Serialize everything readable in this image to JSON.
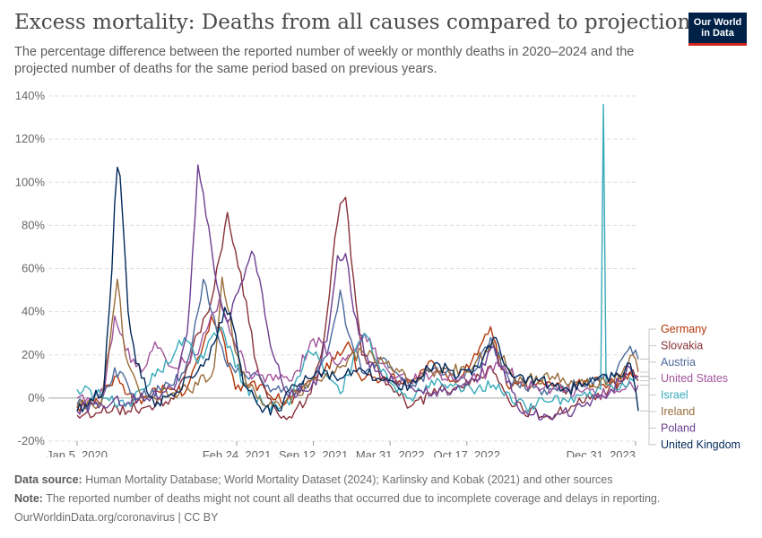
{
  "header": {
    "title": "Excess mortality: Deaths from all causes compared to projection",
    "subtitle": "The percentage difference between the reported number of weekly or monthly deaths in 2020–2024 and the projected number of deaths for the same period based on previous years.",
    "logo_line1": "Our World",
    "logo_line2": "in Data"
  },
  "footer": {
    "source_label": "Data source:",
    "source_text": " Human Mortality Database; World Mortality Dataset (2024); Karlinsky and Kobak (2021) and other sources",
    "note_label": "Note:",
    "note_text": " The reported number of deaths might not count all deaths that occurred due to incomplete coverage and delays in reporting.",
    "credit": "OurWorldinData.org/coronavirus | CC BY"
  },
  "chart_data": {
    "type": "line",
    "x_start": "2020-01-05",
    "x_end": "2024-01-07",
    "x_ticks": [
      {
        "date": "2020-01-05",
        "label": "Jan 5, 2020"
      },
      {
        "date": "2021-02-24",
        "label": "Feb 24, 2021"
      },
      {
        "date": "2021-09-12",
        "label": "Sep 12, 2021"
      },
      {
        "date": "2022-03-31",
        "label": "Mar 31, 2022"
      },
      {
        "date": "2022-10-17",
        "label": "Oct 17, 2022"
      },
      {
        "date": "2023-12-31",
        "label": "Dec 31, 2023"
      }
    ],
    "ylim": [
      -20,
      140
    ],
    "y_ticks": [
      -20,
      0,
      20,
      40,
      60,
      80,
      100,
      120,
      140
    ],
    "y_unit": "%",
    "grid": true,
    "legend_position": "right",
    "series": [
      {
        "name": "Germany",
        "color": "#b13507",
        "points": [
          [
            "2020-01-05",
            -4
          ],
          [
            "2020-03-01",
            -2
          ],
          [
            "2020-04-12",
            10
          ],
          [
            "2020-06-07",
            -2
          ],
          [
            "2020-08-16",
            6
          ],
          [
            "2020-10-11",
            2
          ],
          [
            "2020-11-22",
            20
          ],
          [
            "2020-12-20",
            38
          ],
          [
            "2021-01-17",
            30
          ],
          [
            "2021-02-21",
            4
          ],
          [
            "2021-03-28",
            6
          ],
          [
            "2021-05-09",
            4
          ],
          [
            "2021-07-04",
            -2
          ],
          [
            "2021-09-05",
            8
          ],
          [
            "2021-11-07",
            18
          ],
          [
            "2021-12-12",
            26
          ],
          [
            "2022-01-16",
            8
          ],
          [
            "2022-03-13",
            10
          ],
          [
            "2022-05-22",
            8
          ],
          [
            "2022-07-24",
            16
          ],
          [
            "2022-09-11",
            8
          ],
          [
            "2022-10-23",
            14
          ],
          [
            "2022-12-18",
            33
          ],
          [
            "2023-01-29",
            6
          ],
          [
            "2023-04-09",
            6
          ],
          [
            "2023-06-25",
            4
          ],
          [
            "2023-08-20",
            8
          ],
          [
            "2023-10-22",
            6
          ],
          [
            "2023-12-17",
            12
          ],
          [
            "2024-01-07",
            10
          ]
        ]
      },
      {
        "name": "Slovakia",
        "color": "#883039",
        "points": [
          [
            "2020-01-05",
            -8
          ],
          [
            "2020-04-05",
            -6
          ],
          [
            "2020-07-05",
            -4
          ],
          [
            "2020-09-06",
            0
          ],
          [
            "2020-10-11",
            10
          ],
          [
            "2020-11-15",
            30
          ],
          [
            "2020-12-13",
            40
          ],
          [
            "2021-01-10",
            65
          ],
          [
            "2021-01-31",
            86
          ],
          [
            "2021-02-14",
            72
          ],
          [
            "2021-03-07",
            58
          ],
          [
            "2021-03-28",
            35
          ],
          [
            "2021-04-18",
            15
          ],
          [
            "2021-05-16",
            0
          ],
          [
            "2021-07-04",
            -10
          ],
          [
            "2021-09-05",
            2
          ],
          [
            "2021-10-10",
            28
          ],
          [
            "2021-10-31",
            62
          ],
          [
            "2021-11-21",
            90
          ],
          [
            "2021-12-05",
            93
          ],
          [
            "2021-12-26",
            55
          ],
          [
            "2022-01-16",
            20
          ],
          [
            "2022-03-13",
            10
          ],
          [
            "2022-05-22",
            -4
          ],
          [
            "2022-08-07",
            4
          ],
          [
            "2022-10-23",
            6
          ],
          [
            "2022-12-18",
            15
          ],
          [
            "2023-02-12",
            -4
          ],
          [
            "2023-05-14",
            -8
          ],
          [
            "2023-08-20",
            -2
          ],
          [
            "2023-10-22",
            4
          ],
          [
            "2023-12-17",
            12
          ],
          [
            "2024-01-07",
            8
          ]
        ]
      },
      {
        "name": "Austria",
        "color": "#4c6a9c",
        "points": [
          [
            "2020-01-05",
            -3
          ],
          [
            "2020-03-08",
            -2
          ],
          [
            "2020-04-12",
            14
          ],
          [
            "2020-05-31",
            2
          ],
          [
            "2020-08-16",
            4
          ],
          [
            "2020-10-11",
            12
          ],
          [
            "2020-11-15",
            40
          ],
          [
            "2020-11-29",
            55
          ],
          [
            "2020-12-20",
            40
          ],
          [
            "2021-01-24",
            18
          ],
          [
            "2021-03-14",
            12
          ],
          [
            "2021-05-16",
            6
          ],
          [
            "2021-07-11",
            2
          ],
          [
            "2021-09-05",
            8
          ],
          [
            "2021-10-24",
            25
          ],
          [
            "2021-11-21",
            50
          ],
          [
            "2021-12-12",
            30
          ],
          [
            "2022-01-16",
            12
          ],
          [
            "2022-03-20",
            18
          ],
          [
            "2022-05-29",
            6
          ],
          [
            "2022-07-24",
            14
          ],
          [
            "2022-09-18",
            8
          ],
          [
            "2022-10-30",
            12
          ],
          [
            "2022-12-18",
            28
          ],
          [
            "2023-02-05",
            8
          ],
          [
            "2023-05-07",
            4
          ],
          [
            "2023-08-13",
            6
          ],
          [
            "2023-11-05",
            10
          ],
          [
            "2023-12-17",
            24
          ],
          [
            "2024-01-07",
            18
          ]
        ]
      },
      {
        "name": "United States",
        "color": "#a2559c",
        "points": [
          [
            "2020-01-05",
            0
          ],
          [
            "2020-03-15",
            2
          ],
          [
            "2020-04-12",
            38
          ],
          [
            "2020-05-10",
            22
          ],
          [
            "2020-06-21",
            12
          ],
          [
            "2020-07-26",
            26
          ],
          [
            "2020-09-13",
            14
          ],
          [
            "2020-11-08",
            20
          ],
          [
            "2020-12-13",
            34
          ],
          [
            "2021-01-10",
            46
          ],
          [
            "2021-02-14",
            28
          ],
          [
            "2021-03-28",
            12
          ],
          [
            "2021-05-30",
            8
          ],
          [
            "2021-07-18",
            8
          ],
          [
            "2021-08-29",
            22
          ],
          [
            "2021-09-26",
            28
          ],
          [
            "2021-11-07",
            16
          ],
          [
            "2021-12-19",
            20
          ],
          [
            "2022-01-23",
            30
          ],
          [
            "2022-03-06",
            16
          ],
          [
            "2022-05-15",
            8
          ],
          [
            "2022-07-24",
            12
          ],
          [
            "2022-09-25",
            8
          ],
          [
            "2022-11-20",
            10
          ],
          [
            "2023-01-08",
            16
          ],
          [
            "2023-03-19",
            6
          ],
          [
            "2023-06-11",
            4
          ],
          [
            "2023-09-17",
            2
          ],
          [
            "2023-12-03",
            4
          ],
          [
            "2024-01-07",
            6
          ]
        ]
      },
      {
        "name": "Israel",
        "color": "#38aaba",
        "points": [
          [
            "2020-01-05",
            4
          ],
          [
            "2020-03-22",
            0
          ],
          [
            "2020-05-10",
            -4
          ],
          [
            "2020-07-26",
            10
          ],
          [
            "2020-09-13",
            20
          ],
          [
            "2020-10-11",
            28
          ],
          [
            "2020-11-15",
            16
          ],
          [
            "2021-01-10",
            32
          ],
          [
            "2021-02-07",
            24
          ],
          [
            "2021-03-14",
            6
          ],
          [
            "2021-05-16",
            -4
          ],
          [
            "2021-07-18",
            0
          ],
          [
            "2021-08-29",
            22
          ],
          [
            "2021-09-26",
            18
          ],
          [
            "2021-11-21",
            2
          ],
          [
            "2022-01-23",
            30
          ],
          [
            "2022-03-06",
            12
          ],
          [
            "2022-05-22",
            0
          ],
          [
            "2022-08-07",
            8
          ],
          [
            "2022-10-30",
            4
          ],
          [
            "2022-12-25",
            6
          ],
          [
            "2023-03-19",
            -4
          ],
          [
            "2023-06-25",
            0
          ],
          [
            "2023-09-17",
            2
          ],
          [
            "2023-10-01",
            4
          ],
          [
            "2023-10-08",
            136
          ],
          [
            "2023-10-15",
            6
          ],
          [
            "2023-11-19",
            4
          ],
          [
            "2023-12-24",
            8
          ],
          [
            "2024-01-07",
            10
          ]
        ]
      },
      {
        "name": "Ireland",
        "color": "#996d39",
        "points": [
          [
            "2020-01-05",
            -4
          ],
          [
            "2020-03-08",
            -2
          ],
          [
            "2020-04-05",
            35
          ],
          [
            "2020-04-19",
            55
          ],
          [
            "2020-05-10",
            20
          ],
          [
            "2020-06-21",
            0
          ],
          [
            "2020-09-06",
            2
          ],
          [
            "2020-11-15",
            6
          ],
          [
            "2020-12-27",
            14
          ],
          [
            "2021-01-17",
            56
          ],
          [
            "2021-01-31",
            42
          ],
          [
            "2021-03-07",
            12
          ],
          [
            "2021-05-16",
            -4
          ],
          [
            "2021-07-18",
            0
          ],
          [
            "2021-09-19",
            8
          ],
          [
            "2021-11-21",
            14
          ],
          [
            "2022-01-16",
            22
          ],
          [
            "2022-03-20",
            16
          ],
          [
            "2022-05-29",
            8
          ],
          [
            "2022-08-14",
            14
          ],
          [
            "2022-10-23",
            12
          ],
          [
            "2022-12-25",
            26
          ],
          [
            "2023-02-19",
            8
          ],
          [
            "2023-05-28",
            10
          ],
          [
            "2023-08-20",
            6
          ],
          [
            "2023-11-05",
            8
          ],
          [
            "2023-12-24",
            20
          ],
          [
            "2024-01-07",
            12
          ]
        ]
      },
      {
        "name": "Poland",
        "color": "#6d3e91",
        "points": [
          [
            "2020-01-05",
            -6
          ],
          [
            "2020-04-05",
            -2
          ],
          [
            "2020-07-05",
            0
          ],
          [
            "2020-09-13",
            4
          ],
          [
            "2020-10-18",
            30
          ],
          [
            "2020-11-08",
            85
          ],
          [
            "2020-11-15",
            108
          ],
          [
            "2020-11-29",
            95
          ],
          [
            "2020-12-27",
            60
          ],
          [
            "2021-01-31",
            35
          ],
          [
            "2021-03-14",
            55
          ],
          [
            "2021-04-04",
            68
          ],
          [
            "2021-04-25",
            55
          ],
          [
            "2021-05-23",
            24
          ],
          [
            "2021-07-04",
            2
          ],
          [
            "2021-09-19",
            6
          ],
          [
            "2021-10-24",
            35
          ],
          [
            "2021-11-14",
            66
          ],
          [
            "2021-12-05",
            67
          ],
          [
            "2021-12-26",
            40
          ],
          [
            "2022-02-06",
            14
          ],
          [
            "2022-04-17",
            8
          ],
          [
            "2022-06-26",
            2
          ],
          [
            "2022-09-11",
            4
          ],
          [
            "2022-11-13",
            8
          ],
          [
            "2022-12-25",
            24
          ],
          [
            "2023-02-26",
            -4
          ],
          [
            "2023-05-28",
            -10
          ],
          [
            "2023-08-13",
            -4
          ],
          [
            "2023-10-22",
            2
          ],
          [
            "2023-12-17",
            14
          ],
          [
            "2024-01-07",
            10
          ]
        ]
      },
      {
        "name": "United Kingdom",
        "color": "#00295b",
        "points": [
          [
            "2020-01-05",
            -6
          ],
          [
            "2020-03-15",
            4
          ],
          [
            "2020-04-05",
            60
          ],
          [
            "2020-04-12",
            90
          ],
          [
            "2020-04-19",
            107
          ],
          [
            "2020-04-26",
            103
          ],
          [
            "2020-05-17",
            40
          ],
          [
            "2020-06-07",
            16
          ],
          [
            "2020-07-26",
            -4
          ],
          [
            "2020-09-06",
            2
          ],
          [
            "2020-10-25",
            10
          ],
          [
            "2020-12-06",
            18
          ],
          [
            "2021-01-03",
            28
          ],
          [
            "2021-01-24",
            42
          ],
          [
            "2021-02-14",
            34
          ],
          [
            "2021-03-14",
            6
          ],
          [
            "2021-04-25",
            -4
          ],
          [
            "2021-06-13",
            -6
          ],
          [
            "2021-07-25",
            6
          ],
          [
            "2021-09-19",
            12
          ],
          [
            "2021-11-07",
            10
          ],
          [
            "2022-01-09",
            14
          ],
          [
            "2022-03-13",
            8
          ],
          [
            "2022-05-22",
            6
          ],
          [
            "2022-07-24",
            16
          ],
          [
            "2022-09-25",
            10
          ],
          [
            "2022-11-20",
            14
          ],
          [
            "2022-12-25",
            28
          ],
          [
            "2023-02-12",
            10
          ],
          [
            "2023-04-23",
            8
          ],
          [
            "2023-07-09",
            4
          ],
          [
            "2023-09-17",
            8
          ],
          [
            "2023-11-19",
            10
          ],
          [
            "2023-12-17",
            16
          ],
          [
            "2024-01-07",
            -6
          ]
        ]
      }
    ]
  }
}
